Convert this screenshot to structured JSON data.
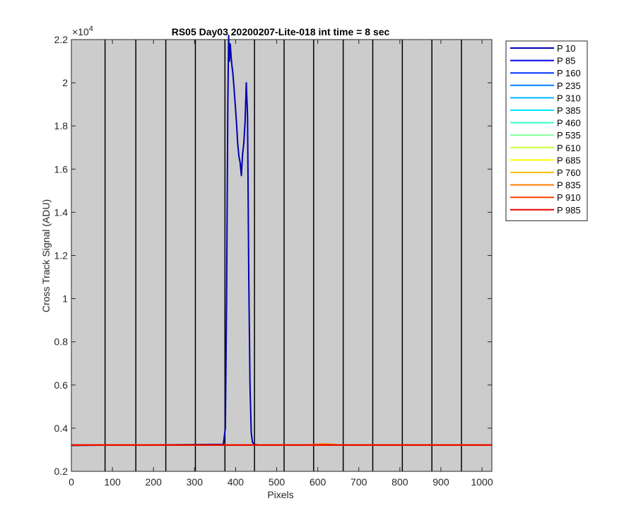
{
  "chart_data": {
    "type": "line",
    "title": "RS05 Day03 20200207-Lite-018 int time = 8 sec",
    "xlabel": "Pixels",
    "ylabel": "Cross Track Signal (ADU)",
    "y_exponent_label": "×10",
    "y_exponent_power": "4",
    "y_scale": 10000,
    "xlim": [
      0,
      1024
    ],
    "ylim": [
      0.2,
      2.2
    ],
    "x_ticks": [
      0,
      100,
      200,
      300,
      400,
      500,
      600,
      700,
      800,
      900,
      1000
    ],
    "x_tick_labels": [
      "0",
      "100",
      "200",
      "300",
      "400",
      "500",
      "600",
      "700",
      "800",
      "900",
      "1000"
    ],
    "y_ticks": [
      0.2,
      0.4,
      0.6,
      0.8,
      1.0,
      1.2,
      1.4,
      1.6,
      1.8,
      2.0,
      2.2
    ],
    "y_tick_labels": [
      "0.2",
      "0.4",
      "0.6",
      "0.8",
      "1",
      "1.2",
      "1.4",
      "1.6",
      "1.8",
      "2",
      "2.2"
    ],
    "plot_background": "#cccccc",
    "vertical_lines_x": [
      82,
      157,
      230,
      302,
      374,
      446,
      518,
      590,
      662,
      734,
      806,
      878,
      950
    ],
    "vertical_line_color": "#000000",
    "legend_position": "outside-right",
    "grid": false,
    "series": [
      {
        "name": "P 10",
        "color": "#0000b3",
        "x": [
          0,
          370,
          375,
          378,
          381,
          383,
          385,
          387,
          389,
          391,
          393,
          396,
          399,
          402,
          405,
          408,
          411,
          414,
          417,
          420,
          423,
          426,
          429,
          432,
          435,
          438,
          441,
          444,
          447,
          450,
          455,
          1024
        ],
        "y": [
          0.32,
          0.325,
          0.4,
          1.0,
          1.9,
          2.22,
          2.1,
          2.18,
          2.12,
          2.08,
          2.05,
          1.98,
          1.9,
          1.82,
          1.72,
          1.66,
          1.63,
          1.57,
          1.67,
          1.72,
          1.82,
          2.0,
          1.85,
          1.1,
          0.6,
          0.38,
          0.335,
          0.327,
          0.325,
          0.324,
          0.322,
          0.322
        ]
      },
      {
        "name": "P 85",
        "color": "#0000e6",
        "x": [
          0,
          1024
        ],
        "y": [
          0.322,
          0.322
        ]
      },
      {
        "name": "P 160",
        "color": "#0033ff",
        "x": [
          0,
          1024
        ],
        "y": [
          0.322,
          0.322
        ]
      },
      {
        "name": "P 235",
        "color": "#0080ff",
        "x": [
          0,
          1024
        ],
        "y": [
          0.322,
          0.322
        ]
      },
      {
        "name": "P 310",
        "color": "#00b3ff",
        "x": [
          0,
          1024
        ],
        "y": [
          0.322,
          0.322
        ]
      },
      {
        "name": "P 385",
        "color": "#00e6ff",
        "x": [
          0,
          1024
        ],
        "y": [
          0.322,
          0.322
        ]
      },
      {
        "name": "P 460",
        "color": "#33ffcc",
        "x": [
          0,
          1024
        ],
        "y": [
          0.322,
          0.322
        ]
      },
      {
        "name": "P 535",
        "color": "#80ff99",
        "x": [
          0,
          1024
        ],
        "y": [
          0.322,
          0.322
        ]
      },
      {
        "name": "P 610",
        "color": "#ccff33",
        "x": [
          0,
          1024
        ],
        "y": [
          0.322,
          0.322
        ]
      },
      {
        "name": "P 685",
        "color": "#ffff00",
        "x": [
          0,
          1024
        ],
        "y": [
          0.322,
          0.322
        ]
      },
      {
        "name": "P 760",
        "color": "#ffbf00",
        "x": [
          0,
          1024
        ],
        "y": [
          0.322,
          0.322
        ]
      },
      {
        "name": "P 835",
        "color": "#ff8000",
        "x": [
          0,
          580,
          600,
          620,
          640,
          650,
          1024
        ],
        "y": [
          0.322,
          0.322,
          0.326,
          0.327,
          0.325,
          0.322,
          0.322
        ]
      },
      {
        "name": "P 910",
        "color": "#ff4000",
        "x": [
          0,
          1024
        ],
        "y": [
          0.322,
          0.322
        ]
      },
      {
        "name": "P 985",
        "color": "#e60000",
        "x": [
          0,
          1024
        ],
        "y": [
          0.322,
          0.322
        ]
      }
    ]
  }
}
